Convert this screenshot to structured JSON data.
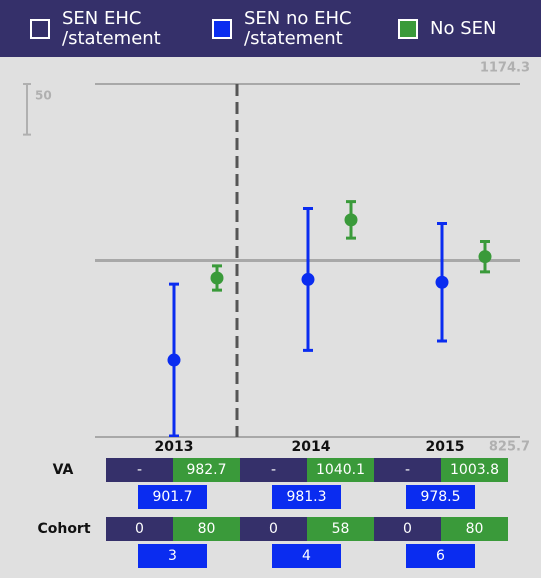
{
  "chart_data": {
    "type": "errorbar",
    "categories": [
      "2013",
      "2014",
      "2015"
    ],
    "series": [
      {
        "name": "SEN EHC\n/statement",
        "color": "#35306a",
        "values": [
          null,
          null,
          null
        ],
        "value_labels": [
          "-",
          "-",
          "-"
        ],
        "errors": [
          null,
          null,
          null
        ],
        "cohort": [
          0,
          0,
          0
        ]
      },
      {
        "name": "SEN no EHC\n/statement",
        "color": "#0a2cf0",
        "values": [
          901.7,
          981.3,
          978.5
        ],
        "errors": [
          75,
          70,
          58
        ],
        "cohort": [
          3,
          4,
          6
        ]
      },
      {
        "name": "No SEN",
        "color": "#3a9a3a",
        "values": [
          982.7,
          1040.1,
          1003.8
        ],
        "errors": [
          12,
          18,
          15
        ],
        "cohort": [
          80,
          58,
          80
        ]
      }
    ],
    "row_labels": [
      "VA",
      "Cohort"
    ],
    "ylim": [
      825.7,
      1174.3
    ],
    "yticks": [
      825.7,
      1174.3
    ],
    "reference_line": 1000,
    "scale_bar": 50
  }
}
